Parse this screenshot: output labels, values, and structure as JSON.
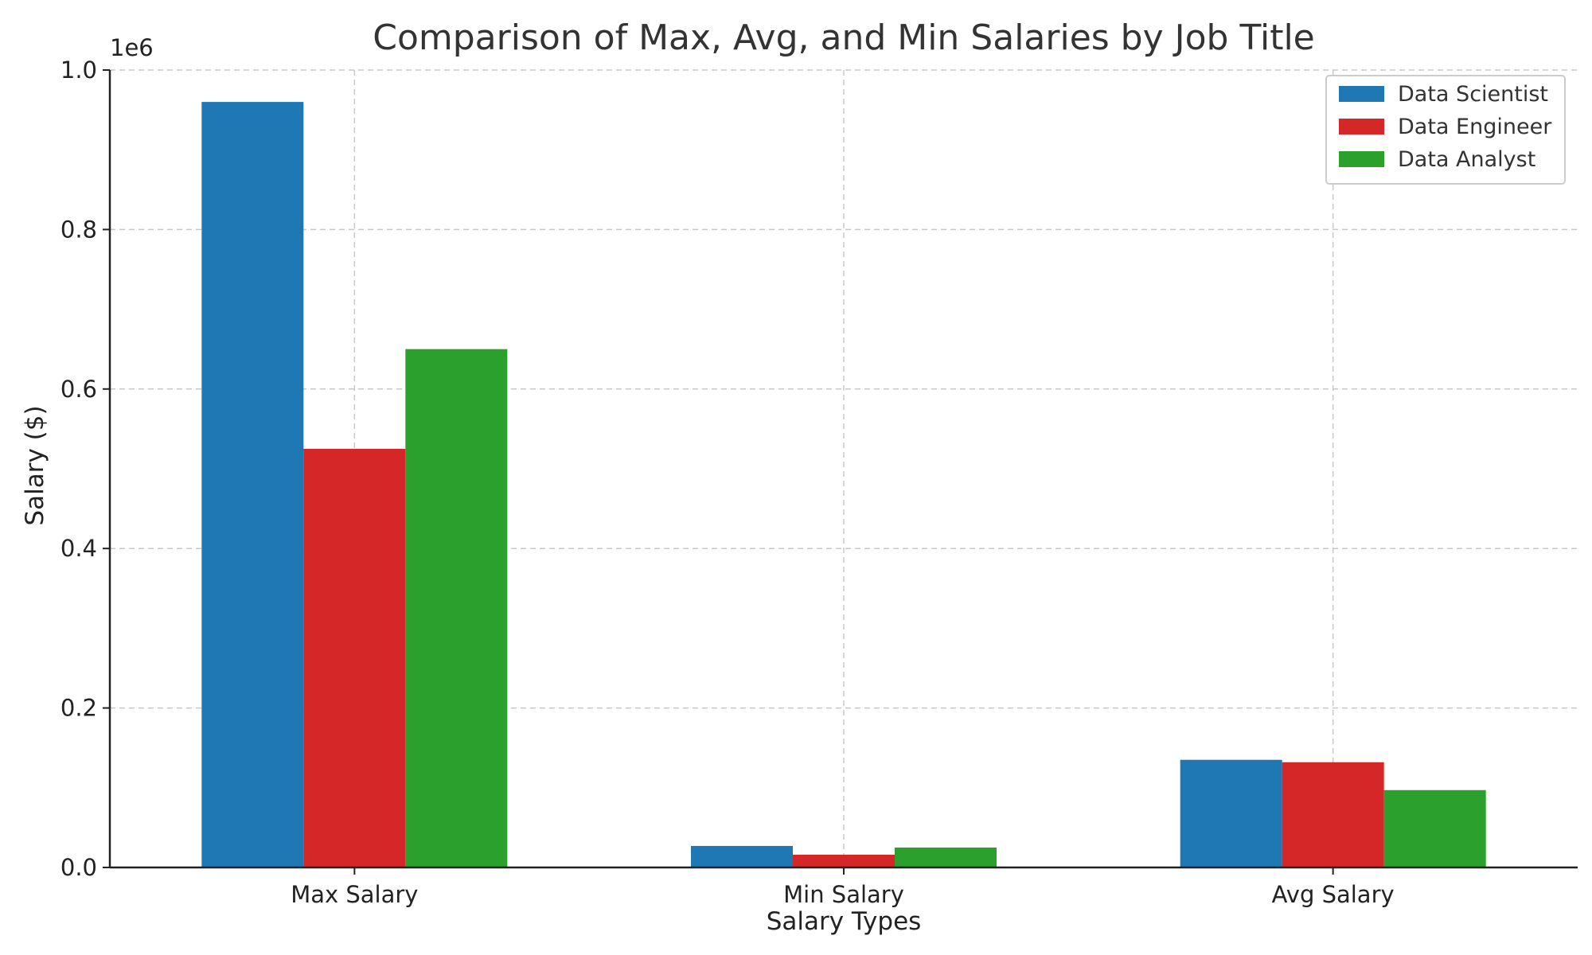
{
  "chart_data": {
    "type": "bar",
    "title": "Comparison of Max, Avg, and Min Salaries by Job Title",
    "xlabel": "Salary Types",
    "ylabel": "Salary ($)",
    "y_offset_label": "1e6",
    "categories": [
      "Max Salary",
      "Min Salary",
      "Avg Salary"
    ],
    "series": [
      {
        "name": "Data Scientist",
        "color": "#1f77b4",
        "values": [
          960000,
          27000,
          135000
        ]
      },
      {
        "name": "Data Engineer",
        "color": "#d62728",
        "values": [
          525000,
          16000,
          132000
        ]
      },
      {
        "name": "Data Analyst",
        "color": "#2ca02c",
        "values": [
          650000,
          25000,
          97000
        ]
      }
    ],
    "ylim": [
      0,
      1000000
    ],
    "yticks": [
      0,
      200000,
      400000,
      600000,
      800000,
      1000000
    ],
    "ytick_labels": [
      "0.0",
      "0.2",
      "0.4",
      "0.6",
      "0.8",
      "1.0"
    ],
    "grid": true,
    "legend_position": "top-right"
  }
}
